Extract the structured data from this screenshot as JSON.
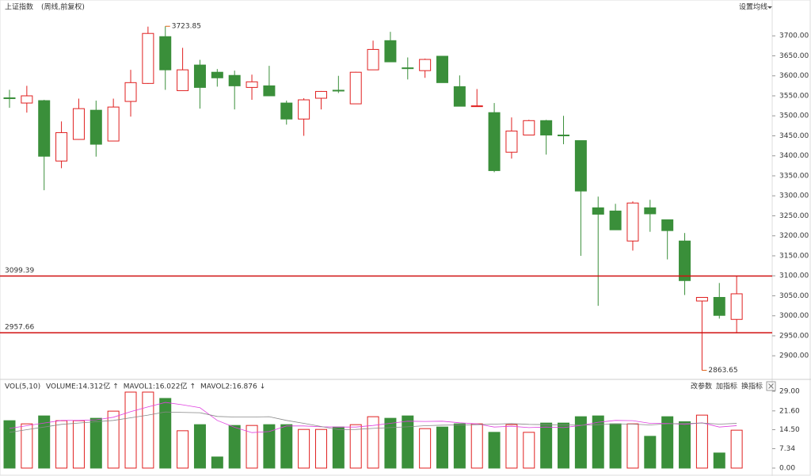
{
  "chart_data": [
    {
      "type": "candlestick",
      "title": "上证指数",
      "subtitle": "(周线,前复权)",
      "button": "设置均线",
      "up_color": "#e02020",
      "down_color": "#3a8f3a",
      "open": [
        3545,
        3532,
        3538,
        3387,
        3441,
        3514,
        3437,
        3536,
        3581,
        3698,
        3563,
        3627,
        3609,
        3601,
        3571,
        3575,
        3532,
        3492,
        3544,
        3564,
        3530,
        3615,
        3688,
        3620,
        3613,
        3649,
        3573,
        3523,
        3508,
        3409,
        3452,
        3488,
        3452,
        3438,
        3270,
        3262,
        3187,
        3270,
        3240,
        3187,
        3037,
        3046,
        2991
      ],
      "high": [
        3565,
        3575,
        3540,
        3486,
        3543,
        3538,
        3543,
        3615,
        3723,
        3723.85,
        3670,
        3640,
        3617,
        3613,
        3603,
        3625,
        3538,
        3544,
        3562,
        3600,
        3610,
        3688,
        3710,
        3646,
        3643,
        3649,
        3601,
        3567,
        3532,
        3496,
        3490,
        3490,
        3500,
        3438,
        3298,
        3280,
        3286,
        3290,
        3240,
        3207,
        3047,
        3082,
        3100
      ],
      "low": [
        3520,
        3508,
        3314,
        3369,
        3440,
        3398,
        3437,
        3498,
        3580,
        3565,
        3563,
        3518,
        3573,
        3516,
        3540,
        3549,
        3478,
        3450,
        3516,
        3557,
        3530,
        3615,
        3635,
        3591,
        3595,
        3583,
        3524,
        3523,
        3359,
        3393,
        3452,
        3403,
        3429,
        3150,
        3025,
        3215,
        3163,
        3210,
        3141,
        3052,
        2863.65,
        2993,
        2957
      ],
      "close": [
        3543,
        3550,
        3399,
        3458,
        3518,
        3429,
        3522,
        3583,
        3706,
        3615,
        3615,
        3571,
        3595,
        3575,
        3585,
        3550,
        3492,
        3540,
        3561,
        3562,
        3609,
        3666,
        3635,
        3618,
        3641,
        3583,
        3524,
        3525,
        3363,
        3462,
        3488,
        3452,
        3450,
        3312,
        3254,
        3215,
        3282,
        3255,
        3213,
        3088,
        3046,
        3001,
        3055
      ],
      "ylim": [
        2843,
        3750
      ],
      "yticks": [
        {
          "value": 2900,
          "label": "2900.00"
        },
        {
          "value": 2950,
          "label": "2950.00"
        },
        {
          "value": 3000,
          "label": "3000.00"
        },
        {
          "value": 3050,
          "label": "3050.00"
        },
        {
          "value": 3100,
          "label": "3100.00"
        },
        {
          "value": 3150,
          "label": "3150.00"
        },
        {
          "value": 3200,
          "label": "3200.00"
        },
        {
          "value": 3250,
          "label": "3250.00"
        },
        {
          "value": 3300,
          "label": "3300.00"
        },
        {
          "value": 3350,
          "label": "3350.00"
        },
        {
          "value": 3400,
          "label": "3400.00"
        },
        {
          "value": 3450,
          "label": "3450.00"
        },
        {
          "value": 3500,
          "label": "3500.00"
        },
        {
          "value": 3550,
          "label": "3550.00"
        },
        {
          "value": 3600,
          "label": "3600.00"
        },
        {
          "value": 3650,
          "label": "3650.00"
        },
        {
          "value": 3700,
          "label": "3700.00"
        }
      ],
      "hlines": [
        {
          "value": 3099.39,
          "label": "3099.39"
        },
        {
          "value": 2957.66,
          "label": "2957.66"
        }
      ],
      "hline_color": "#d01010",
      "annotations": [
        {
          "value": 3723.85,
          "label": "3723.85"
        },
        {
          "value": 2863.65,
          "label": "2863.65"
        }
      ],
      "annotation_color": "#e06010"
    },
    {
      "type": "volume",
      "title": "VOL(5,10)",
      "legend_labels": [
        "VOLUME:14.312亿",
        "MAVOL1:16.022亿",
        "MAVOL2:16.876"
      ],
      "legend_arrows": [
        "↑",
        "↑",
        "↓"
      ],
      "buttons": [
        "改参数",
        "加指标",
        "换指标"
      ],
      "values": [
        17.9,
        16.7,
        19.7,
        17.9,
        17.9,
        18.8,
        21.5,
        28.7,
        28.7,
        26.3,
        14.1,
        16.4,
        4.2,
        16.1,
        16.1,
        16.4,
        16.4,
        14.6,
        14.6,
        15.5,
        16.4,
        19.4,
        18.8,
        19.7,
        14.9,
        15.5,
        16.7,
        16.7,
        13.5,
        16.4,
        13.5,
        17.0,
        17.0,
        19.4,
        19.7,
        16.7,
        16.7,
        12.0,
        19.4,
        17.5,
        20.0,
        5.7,
        14.312
      ],
      "series": [
        {
          "color": "#e040e0",
          "values": [
            15.0,
            16.0,
            17.0,
            18.0,
            18.0,
            18.2,
            19.2,
            21.3,
            23.1,
            24.8,
            23.9,
            22.8,
            18.0,
            15.4,
            13.4,
            13.8,
            15.9,
            15.9,
            15.6,
            15.5,
            15.5,
            16.1,
            16.9,
            17.7,
            17.6,
            17.7,
            17.1,
            16.7,
            15.5,
            15.8,
            15.3,
            15.5,
            15.3,
            16.1,
            17.3,
            18.0,
            17.9,
            16.9,
            16.9,
            16.5,
            17.1,
            15.5,
            16.022
          ]
        },
        {
          "color": "#888888",
          "values": [
            13.5,
            14.5,
            15.5,
            16.5,
            17.0,
            17.5,
            18.0,
            19.0,
            20.0,
            21.2,
            21.0,
            20.9,
            19.5,
            19.3,
            19.3,
            19.4,
            18.0,
            16.9,
            15.7,
            14.5,
            14.6,
            15.0,
            15.3,
            15.6,
            16.0,
            16.2,
            16.3,
            16.4,
            16.6,
            16.8,
            16.5,
            16.4,
            16.3,
            16.2,
            16.4,
            16.7,
            16.6,
            16.3,
            16.7,
            16.8,
            17.0,
            16.6,
            16.876
          ]
        }
      ],
      "ylim": [
        0,
        32.3
      ],
      "yticks": [
        {
          "value": 0,
          "label": "0.00"
        },
        {
          "value": 7.34,
          "label": "7.34"
        },
        {
          "value": 14.5,
          "label": "14.50"
        },
        {
          "value": 21.6,
          "label": "21.60"
        },
        {
          "value": 29,
          "label": "29.00"
        }
      ]
    }
  ]
}
